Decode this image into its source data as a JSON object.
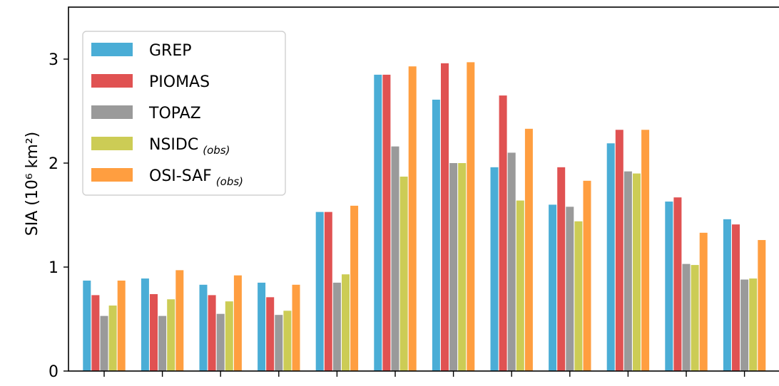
{
  "chart_data": {
    "type": "bar",
    "ylabel": "SIA (10⁶ km²)",
    "ylim": [
      0,
      3.5
    ],
    "yticks": [
      0,
      1,
      2,
      3
    ],
    "ytick_labels": [
      "0",
      "1",
      "2",
      "3"
    ],
    "category_count": 12,
    "legend_position": "top-left",
    "grid": false,
    "series": [
      {
        "name": "GREP",
        "suffix": "",
        "color": "#4aadd6",
        "values": [
          0.87,
          0.89,
          0.83,
          0.85,
          1.53,
          2.85,
          2.61,
          1.96,
          1.6,
          2.19,
          1.63,
          1.46
        ]
      },
      {
        "name": "PIOMAS",
        "suffix": "",
        "color": "#e05252",
        "values": [
          0.73,
          0.74,
          0.73,
          0.71,
          1.53,
          2.85,
          2.96,
          2.65,
          1.96,
          2.32,
          1.67,
          1.41
        ]
      },
      {
        "name": "TOPAZ",
        "suffix": "",
        "color": "#9a9a9a",
        "values": [
          0.53,
          0.53,
          0.55,
          0.54,
          0.85,
          2.16,
          2.0,
          2.1,
          1.58,
          1.92,
          1.03,
          0.88
        ]
      },
      {
        "name": "NSIDC",
        "suffix": "(obs)",
        "color": "#cccc55",
        "values": [
          0.63,
          0.69,
          0.67,
          0.58,
          0.93,
          1.87,
          2.0,
          1.64,
          1.44,
          1.9,
          1.02,
          0.89
        ]
      },
      {
        "name": "OSI-SAF",
        "suffix": "(obs)",
        "color": "#ff9e40",
        "values": [
          0.87,
          0.97,
          0.92,
          0.83,
          1.59,
          2.93,
          2.97,
          2.33,
          1.83,
          2.32,
          1.33,
          1.26
        ]
      }
    ]
  }
}
